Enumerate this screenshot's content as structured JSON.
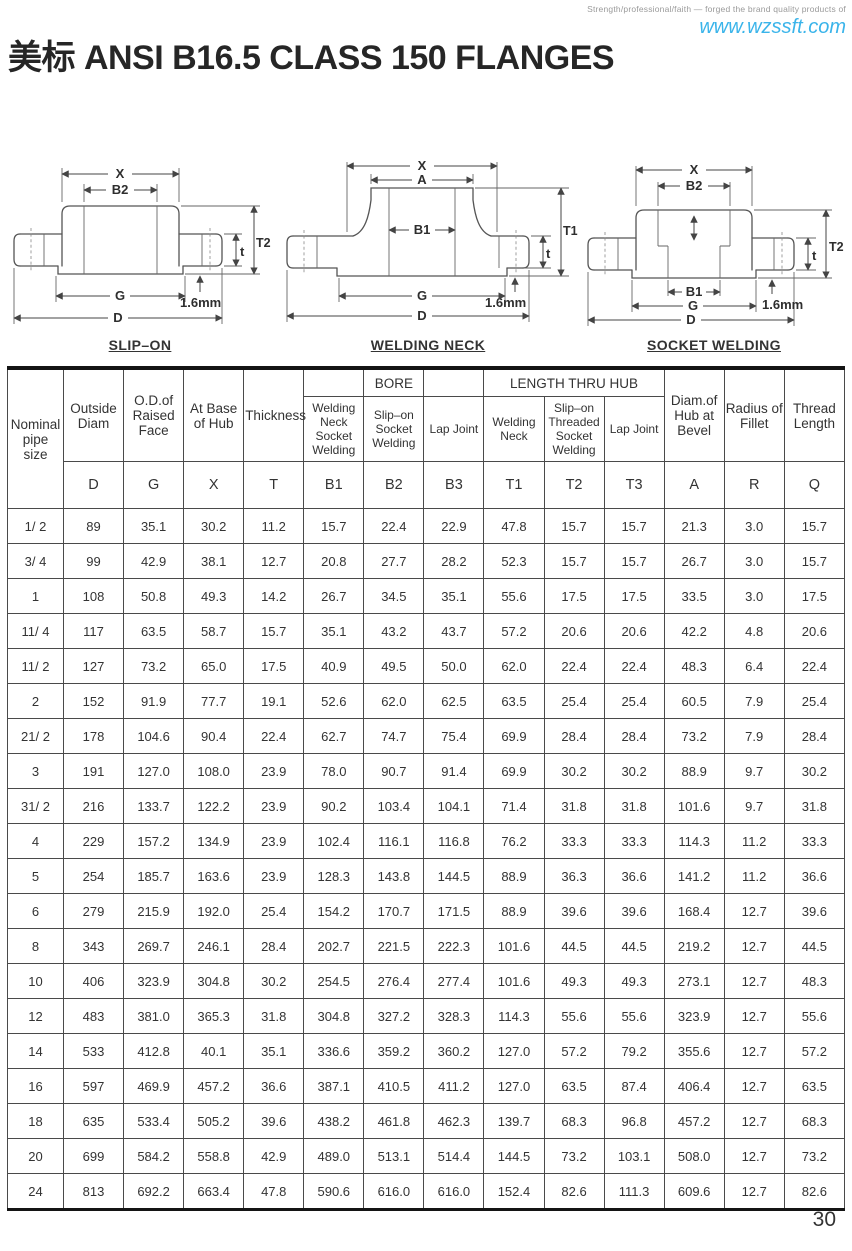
{
  "header": {
    "tagline": "Strength/professional/faith — forged the brand quality products of",
    "website": "www.wzssft.com",
    "title": "美标 ANSI B16.5 CLASS 150 FLANGES"
  },
  "diagrams": [
    {
      "title": "SLIP–ON",
      "dims": {
        "x": "X",
        "b2": "B2",
        "t": "t",
        "t2": "T2",
        "g": "G",
        "d": "D",
        "weld_gap": "1.6mm"
      }
    },
    {
      "title": "WELDING NECK",
      "dims": {
        "x": "X",
        "a": "A",
        "b1": "B1",
        "t1": "T1",
        "t": "t",
        "g": "G",
        "d": "D",
        "weld_gap": "1.6mm"
      }
    },
    {
      "title": "SOCKET WELDING",
      "dims": {
        "x": "X",
        "b2": "B2",
        "b1": "B1",
        "t": "t",
        "t2": "T2",
        "g": "G",
        "d": "D",
        "weld_gap": "1.6mm"
      }
    }
  ],
  "table": {
    "groups": {
      "bore": "BORE",
      "length_thru_hub": "LENGTH THRU HUB"
    },
    "headers": {
      "nominal": "Nominal pipe size",
      "outside_diam": "Outside Diam",
      "od_raised": "O.D.of Raised Face",
      "at_base": "At Base of Hub",
      "thickness": "Thickness",
      "bore_wn": "Welding Neck Socket Welding",
      "bore_so": "Slip–on Socket Welding",
      "bore_lj": "Lap Joint",
      "hub_wn": "Welding Neck",
      "hub_so": "Slip–on Threaded Socket Welding",
      "hub_lj": "Lap Joint",
      "diam_hub": "Diam.of Hub at Bevel",
      "radius": "Radius of Fillet",
      "thread": "Thread Length"
    },
    "letters": [
      "D",
      "G",
      "X",
      "T",
      "B1",
      "B2",
      "B3",
      "T1",
      "T2",
      "T3",
      "A",
      "R",
      "Q"
    ],
    "rows": [
      [
        "1/ 2",
        "89",
        "35.1",
        "30.2",
        "11.2",
        "15.7",
        "22.4",
        "22.9",
        "47.8",
        "15.7",
        "15.7",
        "21.3",
        "3.0",
        "15.7"
      ],
      [
        "3/ 4",
        "99",
        "42.9",
        "38.1",
        "12.7",
        "20.8",
        "27.7",
        "28.2",
        "52.3",
        "15.7",
        "15.7",
        "26.7",
        "3.0",
        "15.7"
      ],
      [
        "1",
        "108",
        "50.8",
        "49.3",
        "14.2",
        "26.7",
        "34.5",
        "35.1",
        "55.6",
        "17.5",
        "17.5",
        "33.5",
        "3.0",
        "17.5"
      ],
      [
        "11/ 4",
        "117",
        "63.5",
        "58.7",
        "15.7",
        "35.1",
        "43.2",
        "43.7",
        "57.2",
        "20.6",
        "20.6",
        "42.2",
        "4.8",
        "20.6"
      ],
      [
        "11/ 2",
        "127",
        "73.2",
        "65.0",
        "17.5",
        "40.9",
        "49.5",
        "50.0",
        "62.0",
        "22.4",
        "22.4",
        "48.3",
        "6.4",
        "22.4"
      ],
      [
        "2",
        "152",
        "91.9",
        "77.7",
        "19.1",
        "52.6",
        "62.0",
        "62.5",
        "63.5",
        "25.4",
        "25.4",
        "60.5",
        "7.9",
        "25.4"
      ],
      [
        "21/ 2",
        "178",
        "104.6",
        "90.4",
        "22.4",
        "62.7",
        "74.7",
        "75.4",
        "69.9",
        "28.4",
        "28.4",
        "73.2",
        "7.9",
        "28.4"
      ],
      [
        "3",
        "191",
        "127.0",
        "108.0",
        "23.9",
        "78.0",
        "90.7",
        "91.4",
        "69.9",
        "30.2",
        "30.2",
        "88.9",
        "9.7",
        "30.2"
      ],
      [
        "31/ 2",
        "216",
        "133.7",
        "122.2",
        "23.9",
        "90.2",
        "103.4",
        "104.1",
        "71.4",
        "31.8",
        "31.8",
        "101.6",
        "9.7",
        "31.8"
      ],
      [
        "4",
        "229",
        "157.2",
        "134.9",
        "23.9",
        "102.4",
        "116.1",
        "116.8",
        "76.2",
        "33.3",
        "33.3",
        "114.3",
        "11.2",
        "33.3"
      ],
      [
        "5",
        "254",
        "185.7",
        "163.6",
        "23.9",
        "128.3",
        "143.8",
        "144.5",
        "88.9",
        "36.3",
        "36.6",
        "141.2",
        "11.2",
        "36.6"
      ],
      [
        "6",
        "279",
        "215.9",
        "192.0",
        "25.4",
        "154.2",
        "170.7",
        "171.5",
        "88.9",
        "39.6",
        "39.6",
        "168.4",
        "12.7",
        "39.6"
      ],
      [
        "8",
        "343",
        "269.7",
        "246.1",
        "28.4",
        "202.7",
        "221.5",
        "222.3",
        "101.6",
        "44.5",
        "44.5",
        "219.2",
        "12.7",
        "44.5"
      ],
      [
        "10",
        "406",
        "323.9",
        "304.8",
        "30.2",
        "254.5",
        "276.4",
        "277.4",
        "101.6",
        "49.3",
        "49.3",
        "273.1",
        "12.7",
        "48.3"
      ],
      [
        "12",
        "483",
        "381.0",
        "365.3",
        "31.8",
        "304.8",
        "327.2",
        "328.3",
        "114.3",
        "55.6",
        "55.6",
        "323.9",
        "12.7",
        "55.6"
      ],
      [
        "14",
        "533",
        "412.8",
        "40.1",
        "35.1",
        "336.6",
        "359.2",
        "360.2",
        "127.0",
        "57.2",
        "79.2",
        "355.6",
        "12.7",
        "57.2"
      ],
      [
        "16",
        "597",
        "469.9",
        "457.2",
        "36.6",
        "387.1",
        "410.5",
        "411.2",
        "127.0",
        "63.5",
        "87.4",
        "406.4",
        "12.7",
        "63.5"
      ],
      [
        "18",
        "635",
        "533.4",
        "505.2",
        "39.6",
        "438.2",
        "461.8",
        "462.3",
        "139.7",
        "68.3",
        "96.8",
        "457.2",
        "12.7",
        "68.3"
      ],
      [
        "20",
        "699",
        "584.2",
        "558.8",
        "42.9",
        "489.0",
        "513.1",
        "514.4",
        "144.5",
        "73.2",
        "103.1",
        "508.0",
        "12.7",
        "73.2"
      ],
      [
        "24",
        "813",
        "692.2",
        "663.4",
        "47.8",
        "590.6",
        "616.0",
        "616.0",
        "152.4",
        "82.6",
        "111.3",
        "609.6",
        "12.7",
        "82.6"
      ]
    ]
  },
  "page": {
    "number": "30"
  }
}
